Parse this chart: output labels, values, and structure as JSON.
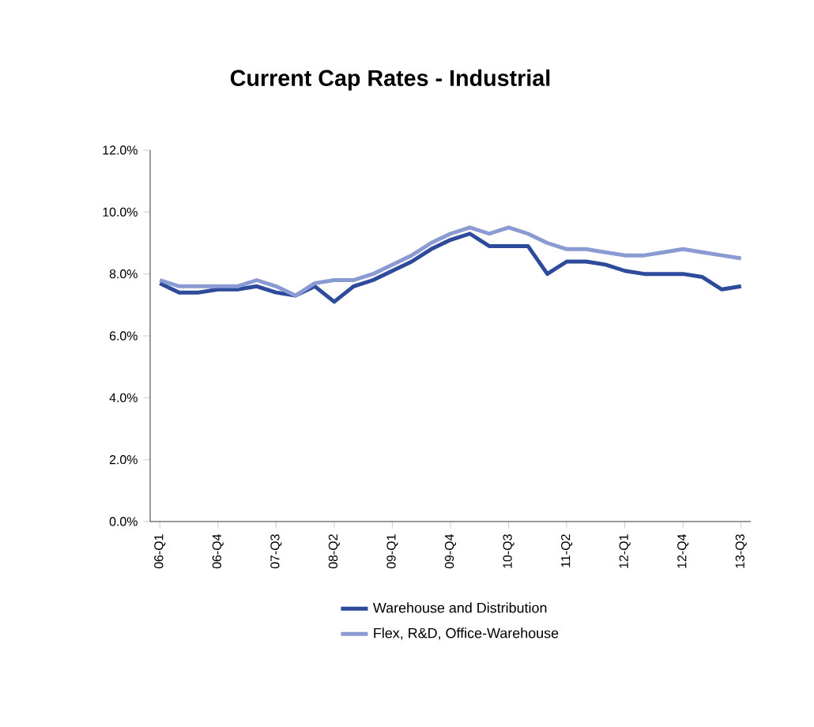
{
  "chart_data": {
    "type": "line",
    "title": "Current Cap Rates - Industrial",
    "categories": [
      "06-Q1",
      null,
      null,
      "06-Q4",
      null,
      null,
      "07-Q3",
      null,
      null,
      "08-Q2",
      null,
      null,
      "09-Q1",
      null,
      null,
      "09-Q4",
      null,
      null,
      "10-Q3",
      null,
      null,
      "11-Q2",
      null,
      null,
      "12-Q1",
      null,
      null,
      "12-Q4",
      null,
      null,
      "13-Q3"
    ],
    "series": [
      {
        "name": "Warehouse and Distribution",
        "color": "#2e4a9a",
        "values": [
          7.7,
          7.4,
          7.4,
          7.5,
          7.5,
          7.6,
          7.4,
          7.3,
          7.6,
          7.1,
          7.6,
          7.8,
          8.1,
          8.4,
          8.8,
          9.1,
          9.3,
          8.9,
          8.9,
          8.9,
          8.0,
          8.4,
          8.4,
          8.3,
          8.1,
          8.0,
          8.0,
          8.0,
          7.9,
          7.5,
          7.6
        ]
      },
      {
        "name": "Flex, R&D, Office-Warehouse",
        "color": "#8a9bd4",
        "values": [
          7.8,
          7.6,
          7.6,
          7.6,
          7.6,
          7.8,
          7.6,
          7.3,
          7.7,
          7.8,
          7.8,
          8.0,
          8.3,
          8.6,
          9.0,
          9.3,
          9.5,
          9.3,
          9.5,
          9.3,
          9.0,
          8.8,
          8.8,
          8.7,
          8.6,
          8.6,
          8.7,
          8.8,
          8.7,
          8.6,
          8.5
        ]
      }
    ],
    "ylim": [
      0,
      12
    ],
    "yticks": [
      {
        "value": 0,
        "label": "0.0%"
      },
      {
        "value": 2,
        "label": "2.0%"
      },
      {
        "value": 4,
        "label": "4.0%"
      },
      {
        "value": 6,
        "label": "6.0%"
      },
      {
        "value": 8,
        "label": "8.0%"
      },
      {
        "value": 10,
        "label": "10.0%"
      },
      {
        "value": 12,
        "label": "12.0%"
      }
    ],
    "grid": false,
    "legend": "bottom",
    "marker": "none",
    "line_style": "solid"
  }
}
